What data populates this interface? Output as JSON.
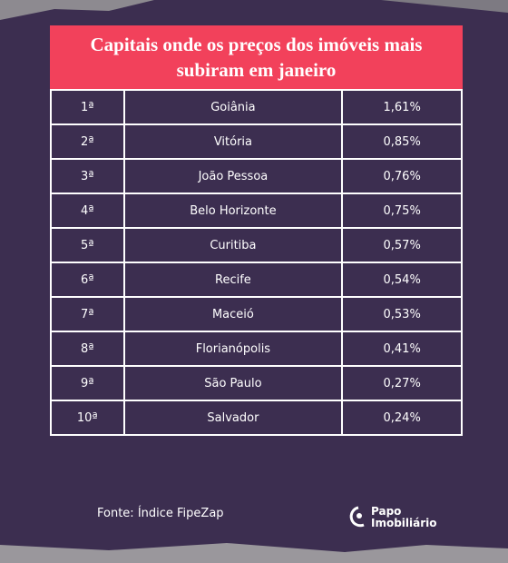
{
  "header": {
    "title": "Capitais onde os preços dos imóveis mais subiram em janeiro"
  },
  "table": {
    "rows": [
      [
        "1ª",
        "Goiânia",
        "1,61%"
      ],
      [
        "2ª",
        "Vitória",
        "0,85%"
      ],
      [
        "3ª",
        "João Pessoa",
        "0,76%"
      ],
      [
        "4ª",
        "Belo Horizonte",
        "0,75%"
      ],
      [
        "5ª",
        "Curitiba",
        "0,57%"
      ],
      [
        "6ª",
        "Recife",
        "0,54%"
      ],
      [
        "7ª",
        "Maceió",
        "0,53%"
      ],
      [
        "8ª",
        "Florianópolis",
        "0,41%"
      ],
      [
        "9ª",
        "São Paulo",
        "0,27%"
      ],
      [
        "10ª",
        "Salvador",
        "0,24%"
      ]
    ]
  },
  "footer": {
    "source": "Fonte:  Índice FipeZap",
    "logo_line1": "Papo",
    "logo_line2": "Imobiliário"
  }
}
